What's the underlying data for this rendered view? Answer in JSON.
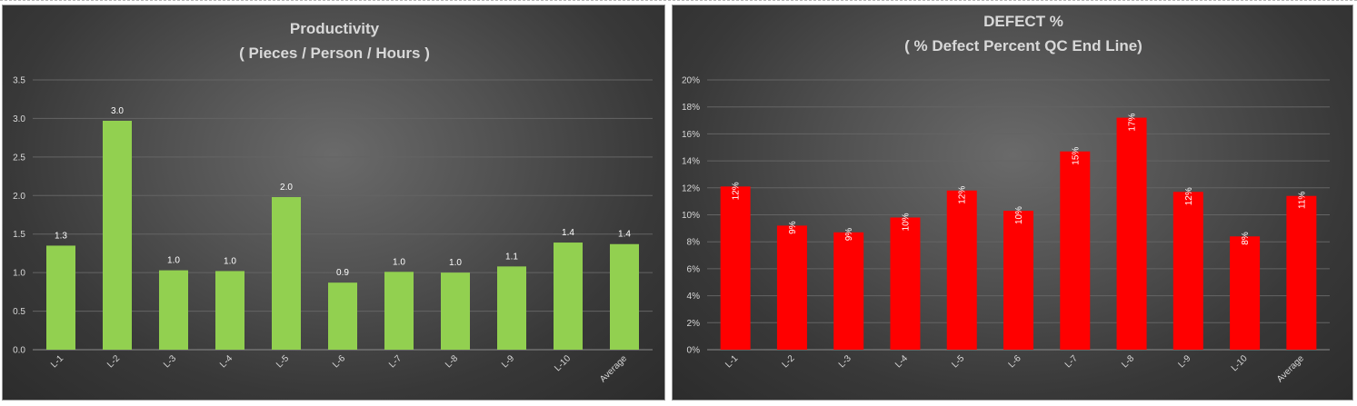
{
  "chart_data": [
    {
      "type": "bar",
      "title": "Productivity",
      "subtitle": "( Pieces / Person / Hours )",
      "categories": [
        "L-1",
        "L-2",
        "L-3",
        "L-4",
        "L-5",
        "L-6",
        "L-7",
        "L-8",
        "L-9",
        "L-10",
        "Average"
      ],
      "values": [
        1.35,
        2.97,
        1.03,
        1.02,
        1.98,
        0.87,
        1.01,
        1.0,
        1.08,
        1.39,
        1.37
      ],
      "data_labels": [
        "1.3",
        "3.0",
        "1.0",
        "1.0",
        "2.0",
        "0.9",
        "1.0",
        "1.0",
        "1.1",
        "1.4",
        "1.4"
      ],
      "ylim": [
        0,
        3.5
      ],
      "yticks": [
        "0.0",
        "0.5",
        "1.0",
        "1.5",
        "2.0",
        "2.5",
        "3.0",
        "3.5"
      ],
      "bar_color": "#92d050",
      "grid": true,
      "legend": "none"
    },
    {
      "type": "bar",
      "title": "DEFECT %",
      "subtitle": "( % Defect Percent QC End Line)",
      "categories": [
        "L-1",
        "L-2",
        "L-3",
        "L-4",
        "L-5",
        "L-6",
        "L-7",
        "L-8",
        "L-9",
        "L-10",
        "Average"
      ],
      "values": [
        12.1,
        9.2,
        8.7,
        9.8,
        11.8,
        10.3,
        14.7,
        17.2,
        11.7,
        8.4,
        11.4
      ],
      "data_labels": [
        "12%",
        "9%",
        "9%",
        "10%",
        "12%",
        "10%",
        "15%",
        "17%",
        "12%",
        "8%",
        "11%"
      ],
      "ylim": [
        0,
        20
      ],
      "yticks": [
        "0%",
        "2%",
        "4%",
        "6%",
        "8%",
        "10%",
        "12%",
        "14%",
        "16%",
        "18%",
        "20%"
      ],
      "bar_color": "#ff0000",
      "grid": true,
      "legend": "none"
    }
  ]
}
